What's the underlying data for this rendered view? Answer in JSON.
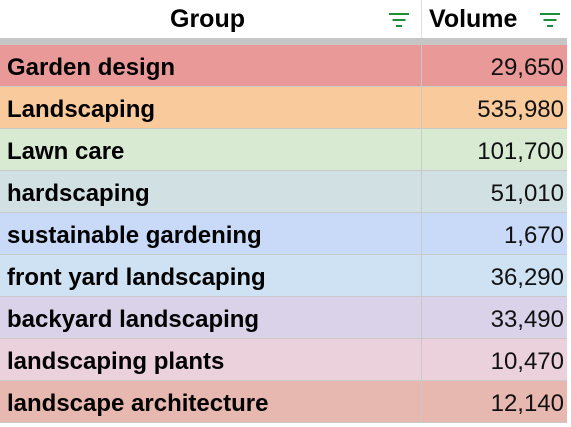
{
  "header": {
    "group_label": "Group",
    "volume_label": "Volume",
    "filter_icon": "filter-icon"
  },
  "rows": [
    {
      "group": "Garden design",
      "volume": "29,650",
      "color": "#ea9999"
    },
    {
      "group": "Landscaping",
      "volume": "535,980",
      "color": "#f9cb9c"
    },
    {
      "group": "Lawn care",
      "volume": "101,700",
      "color": "#d9ead3"
    },
    {
      "group": "hardscaping",
      "volume": "51,010",
      "color": "#d0e0e3"
    },
    {
      "group": "sustainable gardening",
      "volume": "1,670",
      "color": "#c9daf8"
    },
    {
      "group": "front yard landscaping",
      "volume": "36,290",
      "color": "#cfe2f3"
    },
    {
      "group": "backyard landscaping",
      "volume": "33,490",
      "color": "#d9d2e9"
    },
    {
      "group": "landscaping plants",
      "volume": "10,470",
      "color": "#ead1dc"
    },
    {
      "group": "landscape architecture",
      "volume": "12,140",
      "color": "#e6b8af"
    }
  ],
  "colors": {
    "filter_green": "#1e8e3e",
    "frozen_bar": "#c6c6c6",
    "gridline": "#c9c9c9"
  }
}
